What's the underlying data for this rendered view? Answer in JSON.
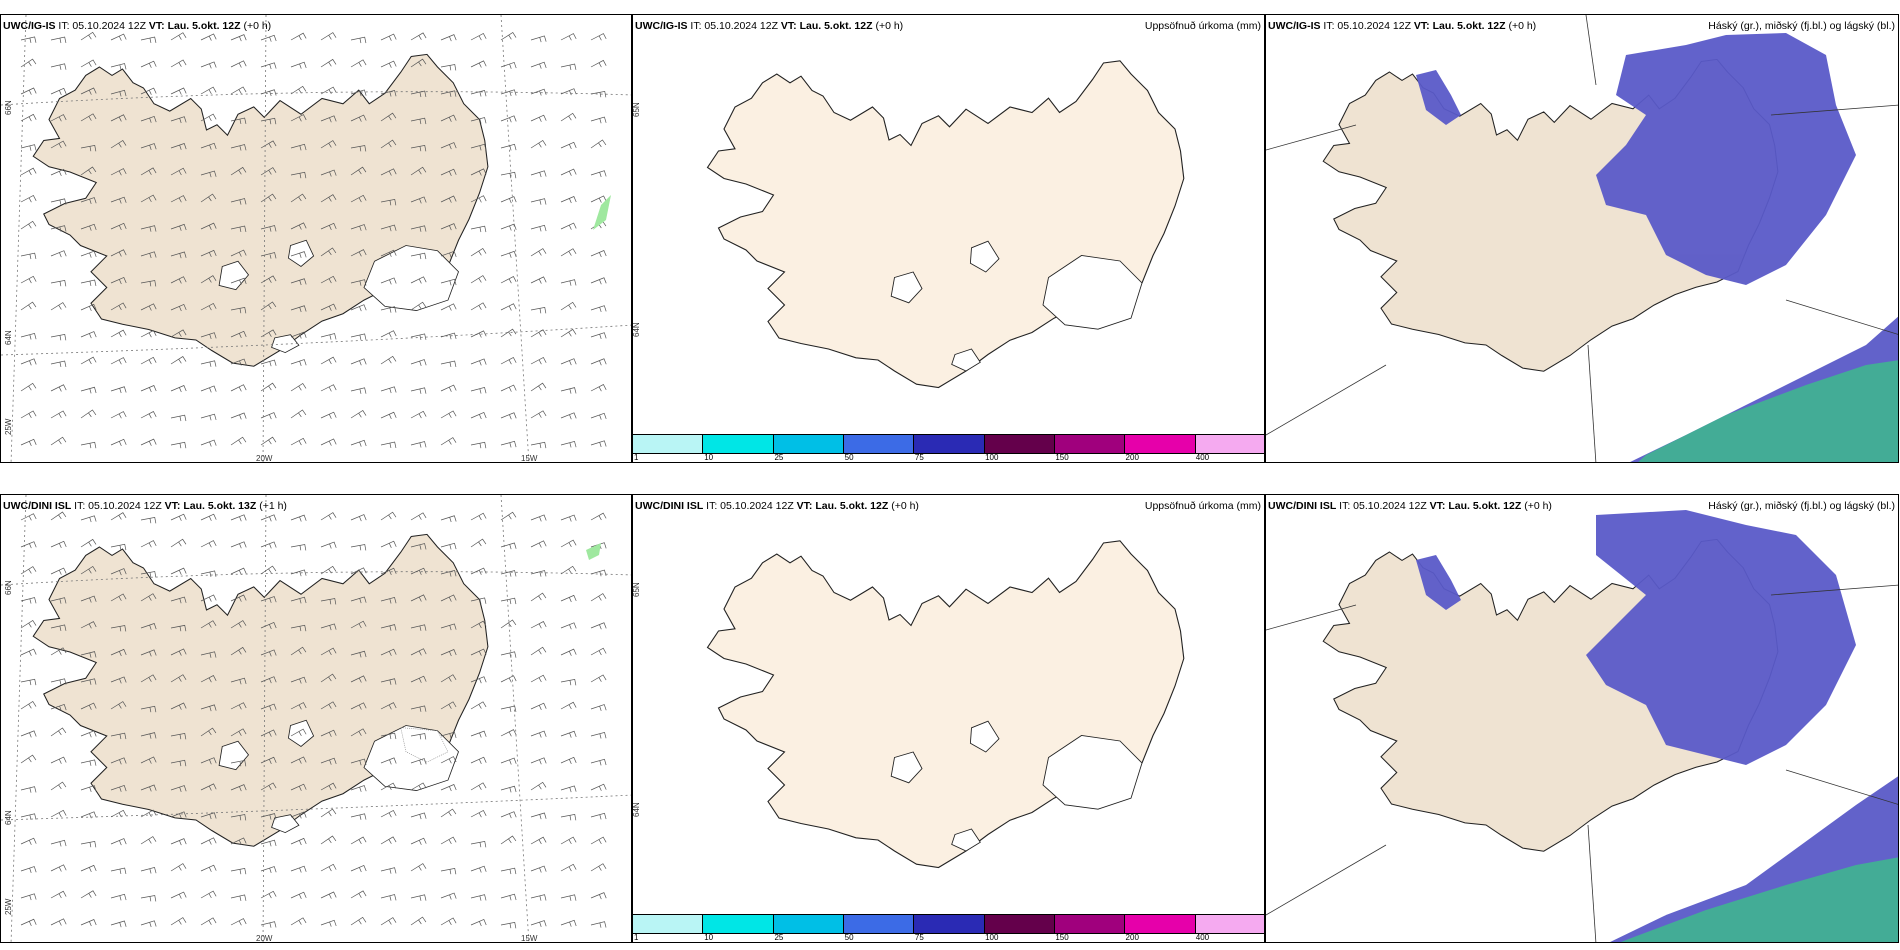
{
  "colors": {
    "land": "#efe3d2",
    "land_plain": "#fbf0e2",
    "ice": "#ffffff",
    "cloud_high": "#5a5ac8",
    "cloud_mid": "#40b590",
    "cloud_low": "#ffffff",
    "coast": "#222222"
  },
  "rows": [
    {
      "model": "UWC/IG-IS",
      "it": "IT: 05.10.2024 12Z",
      "vt_prefix": "VT:",
      "vt": "Lau. 5.okt. 12Z",
      "lead": "(+0 h)"
    },
    {
      "model": "UWC/DINI ISL",
      "it": "IT: 05.10.2024 12Z",
      "vt_prefix": "VT:",
      "vt": "Lau. 5.okt. 13Z",
      "lead": "(+1 h)"
    }
  ],
  "precip_row2_vt": "Lau. 5.okt. 12Z",
  "precip_row2_lead": "(+0 h)",
  "cloud_row2_vt": "Lau. 5.okt. 12Z",
  "cloud_row2_lead": "(+0 h)",
  "precip_title": "Uppsöfnuð úrkoma (mm)",
  "cloud_title": "Háský (gr.), miðský (fj.bl.) og lágský (bl.)",
  "wind_axis": {
    "lon_labels": [
      "20W",
      "15W"
    ],
    "lat_labels": [
      "66N",
      "64N",
      "25W"
    ]
  },
  "precip_axis": {
    "lat_labels": [
      "65N",
      "64N"
    ]
  },
  "colorbar": {
    "colors": [
      "#b9f5f5",
      "#00e6e6",
      "#00bfe6",
      "#3c6be6",
      "#2a2ab4",
      "#64004b",
      "#a0007d",
      "#e600aa",
      "#f5aaf0"
    ],
    "ticks": [
      "1",
      "10",
      "25",
      "50",
      "75",
      "100",
      "150",
      "200",
      "400"
    ]
  }
}
